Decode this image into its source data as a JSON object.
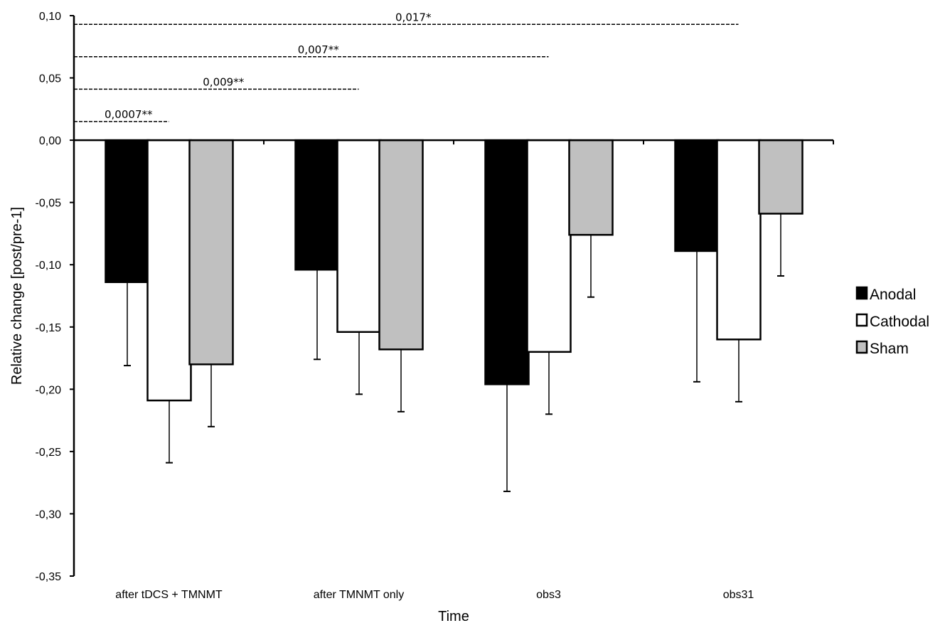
{
  "chart_data": {
    "type": "bar",
    "categories": [
      "after tDCS + TMNMT",
      "after TMNMT only",
      "obs3",
      "obs31"
    ],
    "series": [
      {
        "name": "Anodal",
        "color": "#000000",
        "values": [
          -0.114,
          -0.104,
          -0.196,
          -0.089
        ],
        "errors": [
          0.067,
          0.072,
          0.086,
          0.105
        ]
      },
      {
        "name": "Cathodal",
        "color": "#ffffff",
        "values": [
          -0.209,
          -0.154,
          -0.17,
          -0.16
        ],
        "errors": [
          0.05,
          0.05,
          0.05,
          0.05
        ]
      },
      {
        "name": "Sham",
        "color": "#c0c0c0",
        "values": [
          -0.18,
          -0.168,
          -0.076,
          -0.059
        ],
        "errors": [
          0.05,
          0.05,
          0.05,
          0.05
        ]
      }
    ],
    "xlabel": "Time",
    "ylabel": "Relative change [post/pre-1]",
    "ylim": [
      -0.35,
      0.1
    ],
    "yticks": [
      "-0,35",
      "-0,30",
      "-0,25",
      "-0,20",
      "-0,15",
      "-0,10",
      "-0,05",
      "0,00",
      "0,05",
      "0,10"
    ],
    "ytick_values": [
      -0.35,
      -0.3,
      -0.25,
      -0.2,
      -0.15,
      -0.1,
      -0.05,
      0.0,
      0.05,
      0.1
    ],
    "significance": [
      {
        "label": "0,0007**",
        "value": 0.015,
        "end_category": 0
      },
      {
        "label": "0,009**",
        "value": 0.041,
        "end_category": 1
      },
      {
        "label": "0,007**",
        "value": 0.067,
        "end_category": 2
      },
      {
        "label": "0,017*",
        "value": 0.093,
        "end_category": 3
      }
    ],
    "legend_position": "right",
    "grid": false
  }
}
